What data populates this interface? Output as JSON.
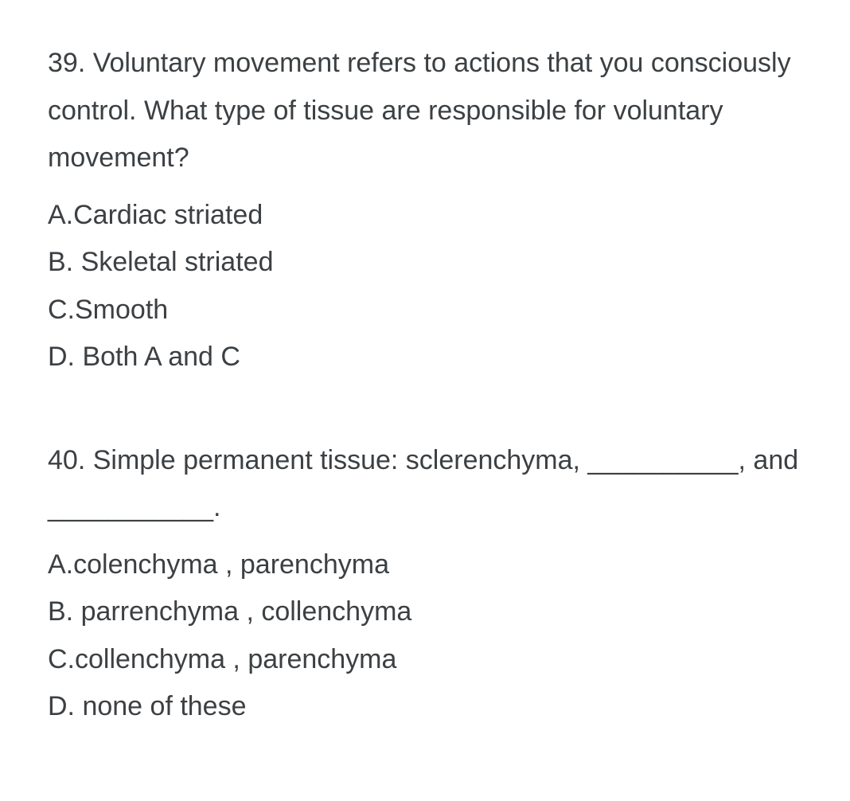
{
  "questions": [
    {
      "number": "39.",
      "text": "Voluntary movement refers to actions that you consciously control. What type of tissue are responsible for voluntary movement?",
      "options": [
        {
          "label": "A.",
          "text": "Cardiac striated"
        },
        {
          "label": "B.",
          "text": " Skeletal striated"
        },
        {
          "label": "C.",
          "text": "Smooth"
        },
        {
          "label": "D.",
          "text": " Both A and C"
        }
      ]
    },
    {
      "number": "40.",
      "text": "Simple permanent tissue: sclerenchyma, __________, and ___________.",
      "options": [
        {
          "label": "A.",
          "text": "colenchyma , parenchyma"
        },
        {
          "label": "B.",
          "text": " parrenchyma , collenchyma"
        },
        {
          "label": "C.",
          "text": "collenchyma , parenchyma"
        },
        {
          "label": "D.",
          "text": " none of these"
        }
      ]
    }
  ],
  "styling": {
    "background_color": "#ffffff",
    "text_color": "#3c4043",
    "font_size_pt": 26,
    "line_height": 1.75,
    "font_family": "Arial"
  }
}
